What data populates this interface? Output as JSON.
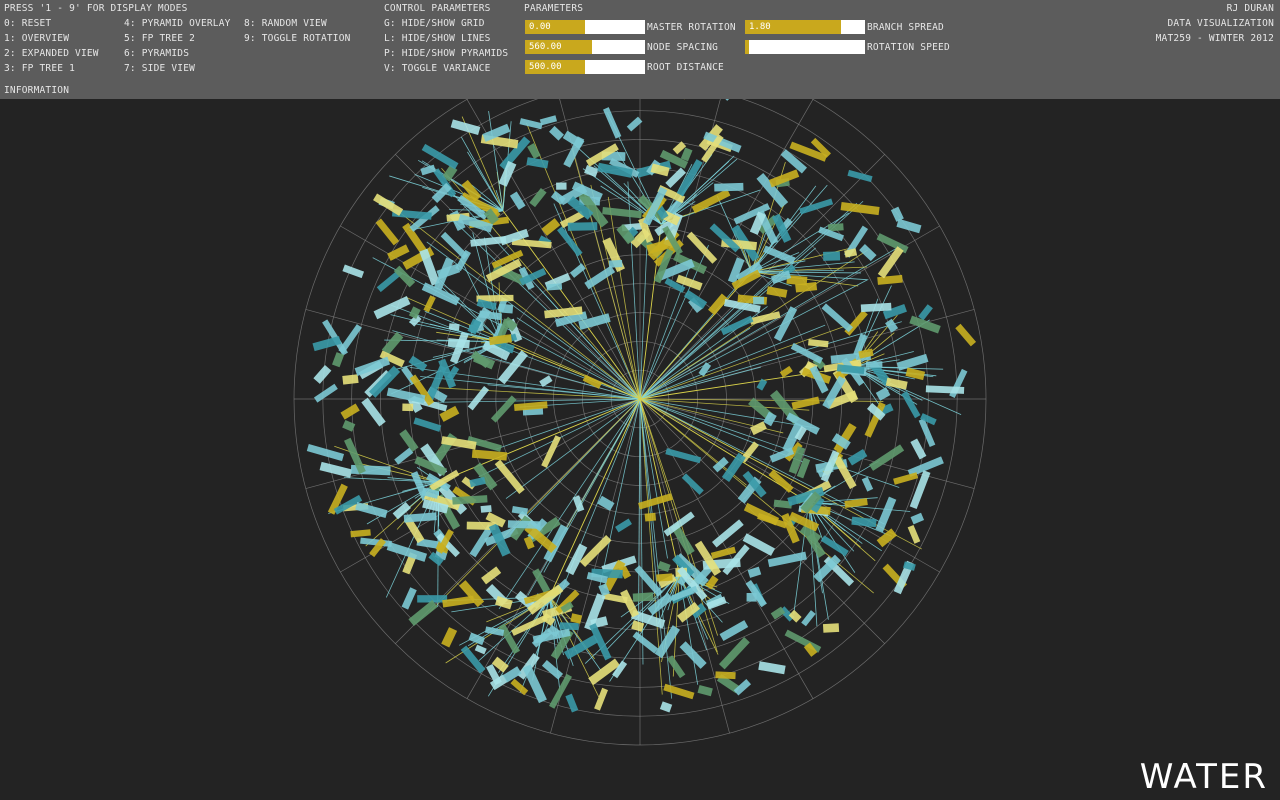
{
  "header": {
    "press_title": "PRESS '1 - 9' FOR DISPLAY MODES",
    "modes_col1": [
      "0: RESET",
      "1: OVERVIEW",
      "2: EXPANDED VIEW",
      "3: FP TREE 1"
    ],
    "modes_col2": [
      "4: PYRAMID OVERLAY",
      "5: FP TREE 2",
      "6: PYRAMIDS",
      "7: SIDE VIEW"
    ],
    "modes_col3": [
      "8: RANDOM VIEW",
      "9: TOGGLE ROTATION"
    ],
    "information": "INFORMATION"
  },
  "controls": {
    "title": "CONTROL PARAMETERS",
    "items": [
      "G: HIDE/SHOW GRID",
      "L: HIDE/SHOW LINES",
      "P: HIDE/SHOW PYRAMIDS",
      "V: TOGGLE VARIANCE"
    ]
  },
  "parameters": {
    "title": "PARAMETERS",
    "sliders": [
      {
        "label": "MASTER ROTATION",
        "value": "0.00",
        "fill": 0.5
      },
      {
        "label": "NODE SPACING",
        "value": "560.00",
        "fill": 0.56
      },
      {
        "label": "ROOT DISTANCE",
        "value": "500.00",
        "fill": 0.5
      },
      {
        "label": "BRANCH SPREAD",
        "value": "1.80",
        "fill": 0.8
      },
      {
        "label": "ROTATION SPEED",
        "value": "0",
        "fill": 0.03
      }
    ]
  },
  "credits": {
    "author": "RJ DURAN",
    "course": "DATA VISUALIZATION",
    "term": "MAT259 - WINTER 2012"
  },
  "dataset_title": "WATER",
  "colors": {
    "background": "#232323",
    "topbar": "#5c5c5c",
    "slider_fill": "#c9a81d",
    "grid": "#8a8a8a",
    "line_cyan": "#7fd8e0",
    "line_yellow": "#d9d24a",
    "label_cyan": "#7cc9d4",
    "label_teal": "#3a9aa8",
    "label_yellow": "#e6e07a",
    "label_olive": "#c9b020",
    "label_green": "#5f9a6e"
  }
}
